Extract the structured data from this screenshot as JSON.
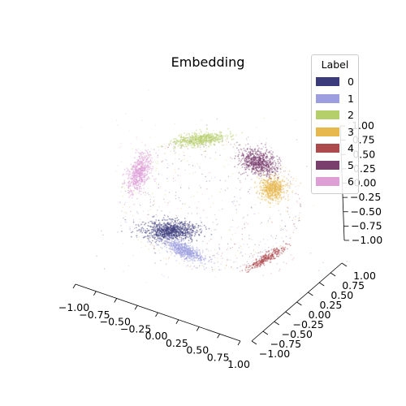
{
  "chart_data": {
    "type": "scatter",
    "projection": "3d",
    "title": "Embedding",
    "x_ticks": [
      "−1.00",
      "−0.75",
      "−0.50",
      "−0.25",
      "0.00",
      "0.25",
      "0.50",
      "0.75",
      "1.00"
    ],
    "y_ticks": [
      "−1.00",
      "−0.75",
      "−0.50",
      "−0.25",
      "0.00",
      "0.25",
      "0.50",
      "0.75",
      "1.00"
    ],
    "z_ticks": [
      "−1.00",
      "−0.75",
      "−0.50",
      "−0.25",
      "0.00",
      "0.25",
      "0.50",
      "0.75",
      "1.00"
    ],
    "xlim": [
      -1,
      1
    ],
    "ylim": [
      -1,
      1
    ],
    "zlim": [
      -1,
      1
    ],
    "grid": false,
    "legend": {
      "title": "Label",
      "placement": "top-right",
      "items": [
        {
          "label": "0",
          "color": "#3b3b7c"
        },
        {
          "label": "1",
          "color": "#9c9edf"
        },
        {
          "label": "2",
          "color": "#b5cf6b"
        },
        {
          "label": "3",
          "color": "#e6b84e"
        },
        {
          "label": "4",
          "color": "#ad4a4d"
        },
        {
          "label": "5",
          "color": "#7b3f6e"
        },
        {
          "label": "6",
          "color": "#de9ed6"
        }
      ]
    },
    "series": [
      {
        "name": "0",
        "color": "#3b3b7c",
        "center": [
          -0.45,
          -0.2,
          -0.75
        ]
      },
      {
        "name": "1",
        "color": "#9c9edf",
        "center": [
          -0.15,
          -0.35,
          -0.9
        ]
      },
      {
        "name": "2",
        "color": "#b5cf6b",
        "center": [
          -0.2,
          0.9,
          0.45
        ]
      },
      {
        "name": "3",
        "color": "#e6b84e",
        "center": [
          0.85,
          0.3,
          0.25
        ]
      },
      {
        "name": "4",
        "color": "#ad4a4d",
        "center": [
          0.75,
          -0.55,
          -0.55
        ]
      },
      {
        "name": "5",
        "color": "#7b3f6e",
        "center": [
          0.5,
          0.65,
          0.6
        ]
      },
      {
        "name": "6",
        "color": "#de9ed6",
        "center": [
          -0.95,
          0.2,
          0.2
        ]
      }
    ]
  }
}
